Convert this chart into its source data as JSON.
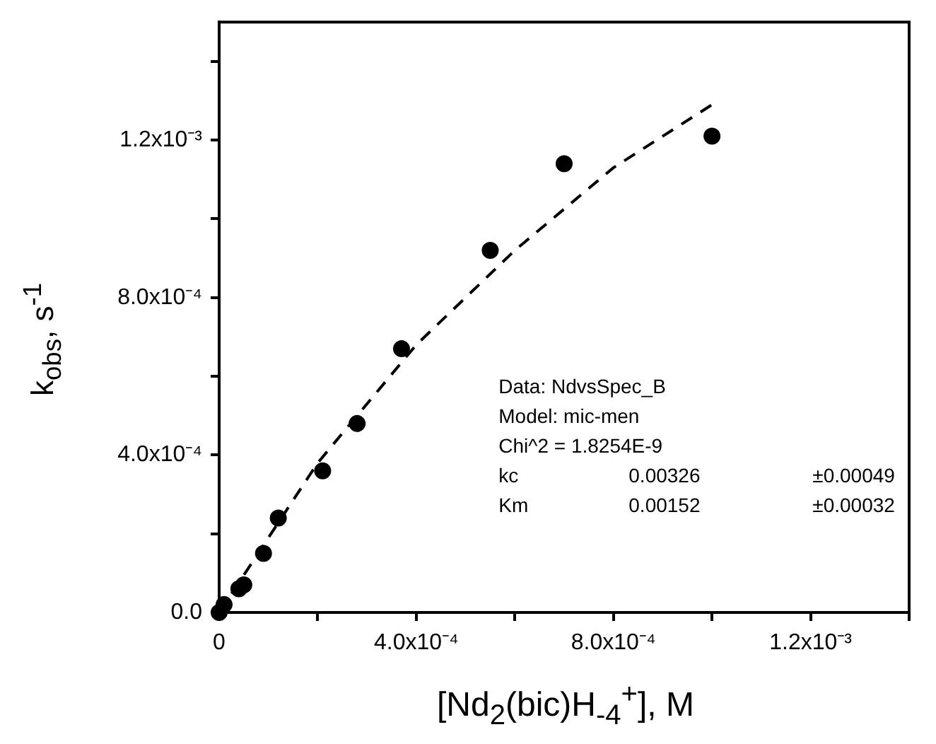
{
  "chart_data": {
    "type": "scatter",
    "xlabel": "[Nd$_{2}$(bic)H$_{-4}$$^{+}$], M",
    "ylabel": "k$_{obs}$, s$^{-1}$",
    "xlim": [
      0,
      0.0014
    ],
    "ylim": [
      0,
      0.0015
    ],
    "xticks": [
      0,
      {
        "value": 0.0002,
        "label": null
      },
      {
        "value": 0.0004,
        "label": "4.0x10⁻⁴"
      },
      {
        "value": 0.0006,
        "label": null
      },
      {
        "value": 0.0008,
        "label": "8.0x10⁻⁴"
      },
      {
        "value": 0.001,
        "label": null
      },
      {
        "value": 0.0012,
        "label": "1.2x10⁻³"
      },
      {
        "value": 0.0014,
        "label": null
      }
    ],
    "yticks": [
      {
        "value": 0,
        "label": "0.0"
      },
      {
        "value": 0.0002,
        "label": null
      },
      {
        "value": 0.0004,
        "label": "4.0x10⁻⁴"
      },
      {
        "value": 0.0006,
        "label": null
      },
      {
        "value": 0.0008,
        "label": "8.0x10⁻⁴"
      },
      {
        "value": 0.001,
        "label": null
      },
      {
        "value": 0.0012,
        "label": "1.2x10⁻³"
      },
      {
        "value": 0.0014,
        "label": null
      }
    ],
    "grid": false,
    "legend": false,
    "series": [
      {
        "color": "#000000",
        "marker": "circle",
        "x": [
          0,
          1e-05,
          4e-05,
          5e-05,
          9e-05,
          0.00012,
          0.00021,
          0.00028,
          0.00037,
          0.00055,
          0.0007,
          0.001
        ],
        "values": [
          0,
          2e-05,
          6e-05,
          7e-05,
          0.00015,
          0.00024,
          0.00036,
          0.00048,
          0.00067,
          0.00092,
          0.00114,
          0.00121
        ]
      },
      {
        "type": "line",
        "color": "#000000",
        "marker": "none",
        "line_style": "dashed",
        "x": [
          0,
          0.0002,
          0.0004,
          0.0006,
          0.0008,
          0.001
        ],
        "values": [
          0,
          0.00038,
          0.00068,
          0.00092,
          0.00113,
          0.00129
        ]
      }
    ],
    "annotations": [
      "Data: NdvsSpec_B",
      "Model: mic-men",
      "Chi^2 = 1.8254E-9",
      "kc",
      "0.00326",
      "±0.00049",
      "Km",
      "0.00152",
      "±0.00032"
    ]
  }
}
